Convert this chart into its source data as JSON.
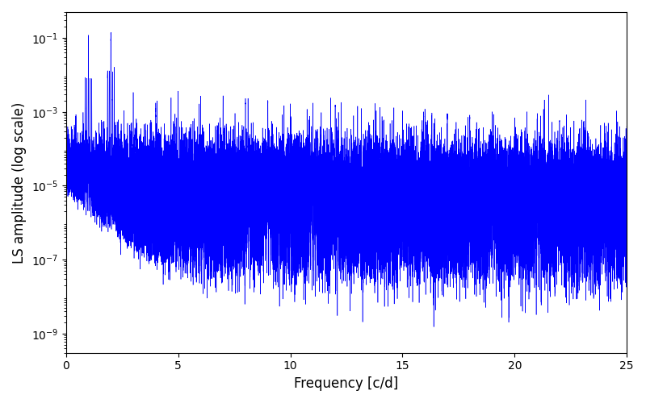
{
  "xlabel": "Frequency [c/d]",
  "ylabel": "LS amplitude (log scale)",
  "xlim": [
    0,
    25
  ],
  "ylim": [
    3e-10,
    0.5
  ],
  "line_color": "#0000ff",
  "linewidth": 0.4,
  "figsize": [
    8.0,
    5.0
  ],
  "dpi": 100,
  "freq_max": 25.0,
  "n_points": 75000,
  "background_level": 3e-06,
  "background_sigma": 1.8,
  "envelope_decay": 0.03,
  "spike_interval": 1.0,
  "spike_amp_f1": 0.09,
  "spike_amp_f2": 0.14,
  "spike_decay": 0.1,
  "noise_floor": 1e-10,
  "yticks": [
    1e-09,
    1e-07,
    1e-05,
    0.001,
    0.1
  ]
}
